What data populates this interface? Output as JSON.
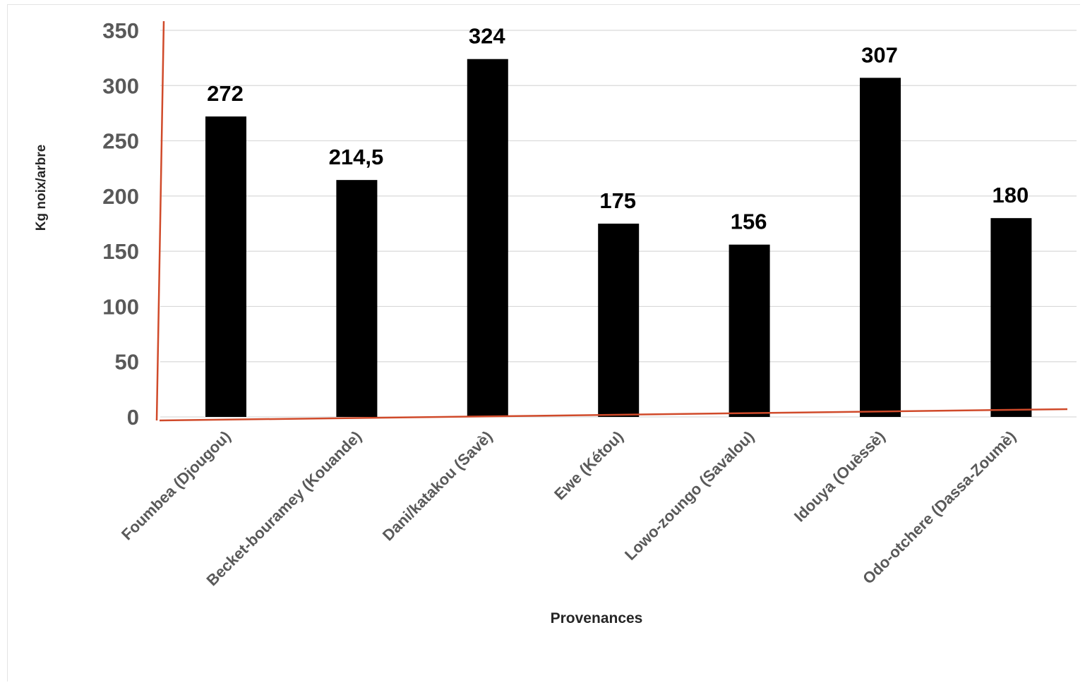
{
  "chart_data": {
    "type": "bar",
    "categories": [
      "Foumbea (Djougou)",
      "Becket-bouramey (Kouande)",
      "Dani/katakou (Savè)",
      "Ewe (Kétou)",
      "Lowo-zoungo (Savalou)",
      "Idouya (Ouèssè)",
      "Odo-otchere (Dassa-Zoumè)"
    ],
    "values": [
      272,
      214.5,
      324,
      175,
      156,
      307,
      180
    ],
    "data_labels": [
      "272",
      "214,5",
      "324",
      "175",
      "156",
      "307",
      "180"
    ],
    "title": "",
    "xlabel": "Provenances",
    "ylabel": "Kg noix/arbre",
    "ylim": [
      0,
      350
    ],
    "yticks": [
      0,
      50,
      100,
      150,
      200,
      250,
      300,
      350
    ],
    "grid": true,
    "legend": "none",
    "colors": {
      "bar": "#000000",
      "grid": "#d9d9d9",
      "axis_line": "#d04a2a",
      "tick_text": "#595959",
      "label_text": "#000000"
    }
  }
}
